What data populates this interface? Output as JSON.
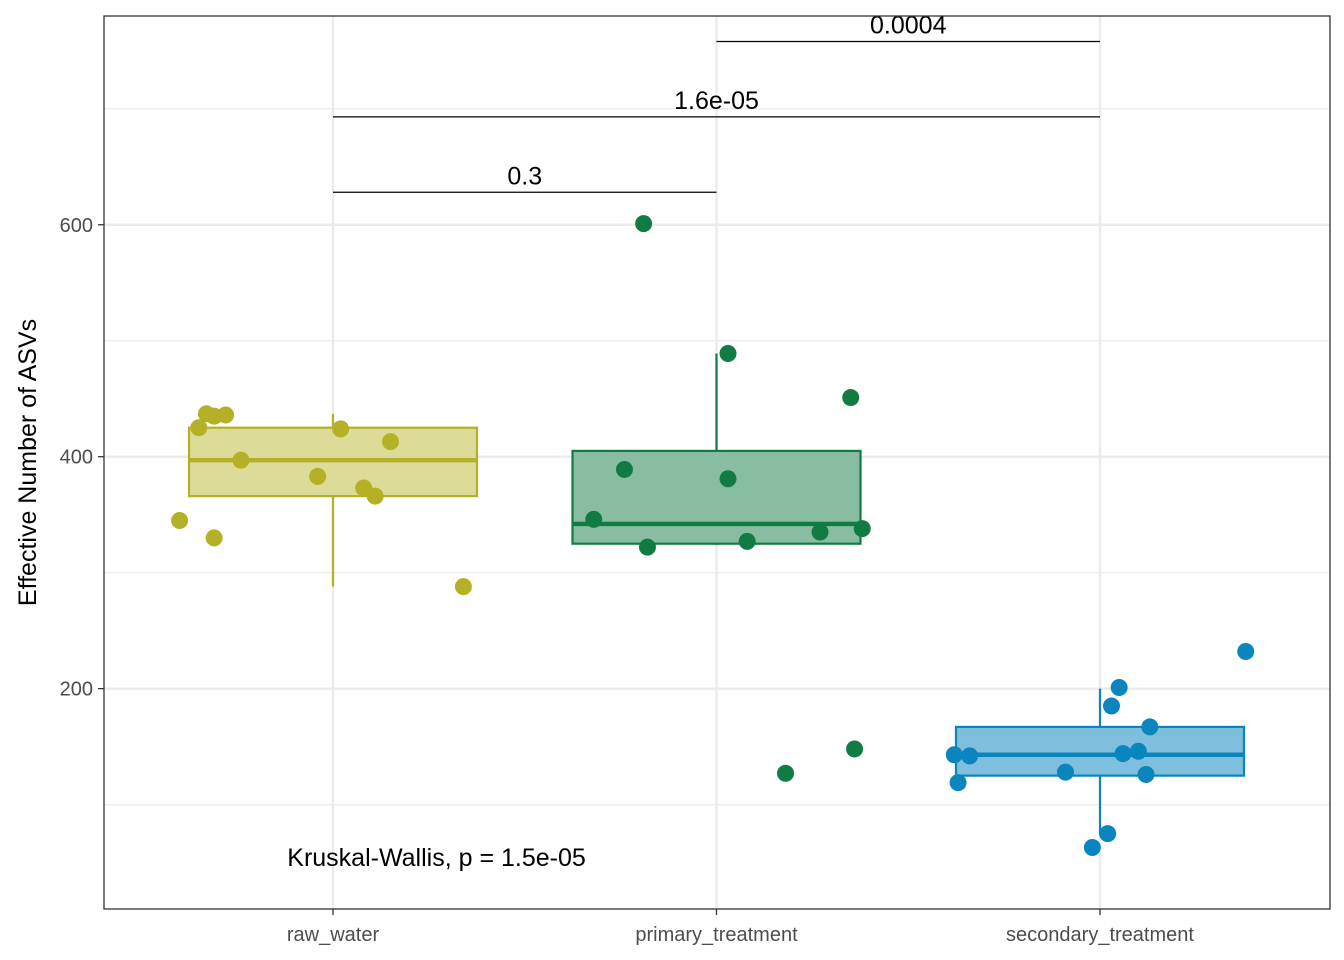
{
  "chart_data": {
    "type": "boxplot",
    "xlabel": "",
    "ylabel": "Effective Number of ASVs",
    "ylim": [
      10,
      780
    ],
    "yticks": [
      200,
      400,
      600
    ],
    "grid": true,
    "legend": "none",
    "categories": [
      "raw_water",
      "primary_treatment",
      "secondary_treatment"
    ],
    "groups": [
      {
        "name": "raw_water",
        "color": "#b5b126",
        "fill": "#dcdb98",
        "box": {
          "whisker_low": 288,
          "q1": 366,
          "median": 397,
          "q3": 425,
          "whisker_high": 437
        },
        "points": [
          {
            "offset": -0.4,
            "y": 345
          },
          {
            "offset": -0.35,
            "y": 425
          },
          {
            "offset": -0.33,
            "y": 437
          },
          {
            "offset": -0.31,
            "y": 330
          },
          {
            "offset": -0.31,
            "y": 435
          },
          {
            "offset": -0.28,
            "y": 436
          },
          {
            "offset": -0.24,
            "y": 397
          },
          {
            "offset": -0.04,
            "y": 383
          },
          {
            "offset": 0.02,
            "y": 424
          },
          {
            "offset": 0.08,
            "y": 373
          },
          {
            "offset": 0.11,
            "y": 366
          },
          {
            "offset": 0.15,
            "y": 413
          },
          {
            "offset": 0.34,
            "y": 288
          }
        ]
      },
      {
        "name": "primary_treatment",
        "color": "#107c44",
        "fill": "#88bda1",
        "box": {
          "whisker_low": 324,
          "q1": 325,
          "median": 342,
          "q3": 405,
          "whisker_high": 489
        },
        "points": [
          {
            "offset": -0.32,
            "y": 346
          },
          {
            "offset": -0.24,
            "y": 389
          },
          {
            "offset": -0.19,
            "y": 601
          },
          {
            "offset": -0.18,
            "y": 322
          },
          {
            "offset": 0.03,
            "y": 489
          },
          {
            "offset": 0.03,
            "y": 381
          },
          {
            "offset": 0.08,
            "y": 327
          },
          {
            "offset": 0.18,
            "y": 127
          },
          {
            "offset": 0.27,
            "y": 335
          },
          {
            "offset": 0.35,
            "y": 451
          },
          {
            "offset": 0.36,
            "y": 148
          },
          {
            "offset": 0.38,
            "y": 338
          }
        ]
      },
      {
        "name": "secondary_treatment",
        "color": "#0b85bd",
        "fill": "#7dbfdc",
        "box": {
          "whisker_low": 74,
          "q1": 125,
          "median": 143,
          "q3": 167,
          "whisker_high": 200
        },
        "points": [
          {
            "offset": -0.38,
            "y": 143
          },
          {
            "offset": -0.37,
            "y": 119
          },
          {
            "offset": -0.34,
            "y": 142
          },
          {
            "offset": -0.09,
            "y": 128
          },
          {
            "offset": -0.02,
            "y": 63
          },
          {
            "offset": 0.02,
            "y": 75
          },
          {
            "offset": 0.03,
            "y": 185
          },
          {
            "offset": 0.05,
            "y": 201
          },
          {
            "offset": 0.06,
            "y": 144
          },
          {
            "offset": 0.1,
            "y": 146
          },
          {
            "offset": 0.12,
            "y": 126
          },
          {
            "offset": 0.13,
            "y": 167
          },
          {
            "offset": 0.38,
            "y": 232
          }
        ]
      }
    ],
    "comparisons": [
      {
        "from": 0,
        "to": 1,
        "y": 628,
        "label": "0.3"
      },
      {
        "from": 0,
        "to": 2,
        "y": 693,
        "label": "1.6e-05"
      },
      {
        "from": 1,
        "to": 2,
        "y": 758,
        "label": "0.0004"
      }
    ],
    "annotation": {
      "text": "Kruskal-Wallis, p = 1.5e-05",
      "x": 0.27,
      "y": 55
    }
  }
}
